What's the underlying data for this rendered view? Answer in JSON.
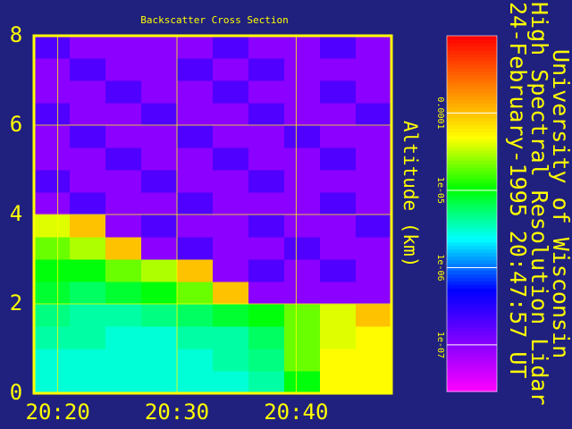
{
  "chart_data": {
    "type": "heatmap",
    "title": "Backscatter Cross Section",
    "texts": [
      "University of Wisconsin",
      "High Spectral Resolution Lidar",
      "24-February-1995 20:47:57 UT"
    ],
    "ylabel": "Altitude (km)",
    "x": [
      18,
      21,
      24,
      27,
      30,
      33,
      36,
      39,
      42,
      45,
      48
    ],
    "y": [
      0,
      0.5,
      1,
      1.5,
      2,
      2.5,
      3,
      3.5,
      4,
      4.5,
      5,
      5.5,
      6,
      6.5,
      7,
      7.5,
      8
    ],
    "values": [
      [
        3e-06,
        3e-06,
        3e-06,
        3e-06,
        3e-06,
        3e-06,
        4e-06,
        1e-05,
        5e-05,
        5e-05
      ],
      [
        3e-06,
        3e-06,
        3e-06,
        3e-06,
        3e-06,
        4e-06,
        5e-06,
        2e-05,
        5e-05,
        5e-05
      ],
      [
        4e-06,
        4e-06,
        3e-06,
        3e-06,
        4e-06,
        4e-06,
        6e-06,
        2e-05,
        4e-05,
        5e-05
      ],
      [
        5e-06,
        4e-06,
        4e-06,
        5e-06,
        6e-06,
        8e-06,
        1e-05,
        2e-05,
        4e-05,
        0.0001
      ],
      [
        8e-06,
        6e-06,
        8e-06,
        1e-05,
        2e-05,
        0.0001,
        1e-07,
        1e-07,
        1e-07,
        1e-07
      ],
      [
        1e-05,
        1e-05,
        2e-05,
        3e-05,
        0.0001,
        1e-07,
        2e-07,
        1e-07,
        2e-07,
        1e-07
      ],
      [
        2e-05,
        3e-05,
        0.0001,
        1e-07,
        2e-07,
        1e-07,
        1e-07,
        2e-07,
        1e-07,
        1e-07
      ],
      [
        4e-05,
        0.0001,
        1e-07,
        2e-07,
        1e-07,
        1e-07,
        2e-07,
        1e-07,
        1e-07,
        2e-07
      ],
      [
        1e-07,
        2e-07,
        1e-07,
        1e-07,
        2e-07,
        1e-07,
        1e-07,
        1e-07,
        2e-07,
        1e-07
      ],
      [
        2e-07,
        1e-07,
        1e-07,
        2e-07,
        1e-07,
        1e-07,
        2e-07,
        1e-07,
        1e-07,
        1e-07
      ],
      [
        1e-07,
        1e-07,
        2e-07,
        1e-07,
        1e-07,
        2e-07,
        1e-07,
        1e-07,
        2e-07,
        1e-07
      ],
      [
        1e-07,
        2e-07,
        1e-07,
        1e-07,
        2e-07,
        1e-07,
        1e-07,
        2e-07,
        1e-07,
        1e-07
      ],
      [
        2e-07,
        1e-07,
        1e-07,
        2e-07,
        1e-07,
        1e-07,
        2e-07,
        1e-07,
        1e-07,
        2e-07
      ],
      [
        1e-07,
        1e-07,
        2e-07,
        1e-07,
        1e-07,
        2e-07,
        1e-07,
        1e-07,
        2e-07,
        1e-07
      ],
      [
        1e-07,
        2e-07,
        1e-07,
        1e-07,
        2e-07,
        1e-07,
        2e-07,
        1e-07,
        1e-07,
        1e-07
      ],
      [
        2e-07,
        1e-07,
        1e-07,
        1e-07,
        1e-07,
        2e-07,
        1e-07,
        1e-07,
        2e-07,
        1e-07
      ]
    ],
    "xlim": [
      18,
      48
    ],
    "xticks": [
      {
        "value": 20,
        "label": "20:20"
      },
      {
        "value": 30,
        "label": "20:30"
      },
      {
        "value": 40,
        "label": "20:40"
      }
    ],
    "ylim": [
      0,
      8
    ],
    "yticks": [
      0,
      2,
      4,
      6,
      8
    ],
    "grid": true,
    "clim": [
      2.5e-08,
      0.001
    ],
    "cscale": "log",
    "cticks": [
      {
        "value": 0.0001,
        "label": "0.0001"
      },
      {
        "value": 1e-05,
        "label": "1e-05"
      },
      {
        "value": 1e-06,
        "label": "1e-06"
      },
      {
        "value": 1e-07,
        "label": "1e-07"
      }
    ],
    "colormap": [
      "#ff00ff",
      "#8000ff",
      "#0000ff",
      "#00ffff",
      "#00ff00",
      "#ffff00",
      "#ff8000",
      "#ff0000"
    ]
  }
}
